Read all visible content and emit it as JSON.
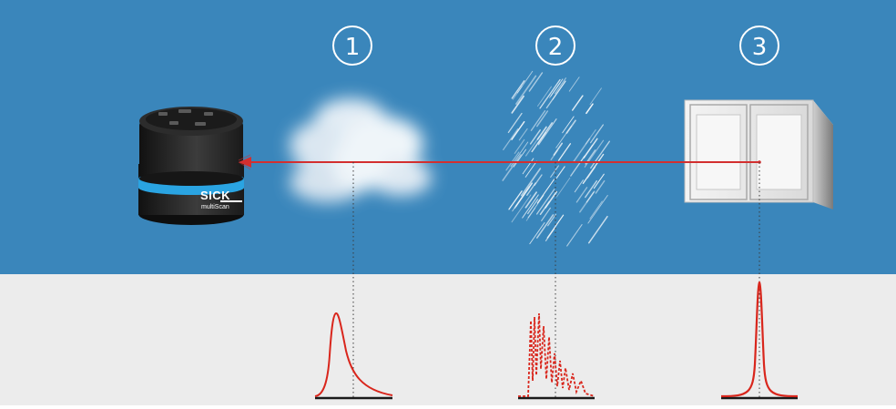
{
  "stages": [
    {
      "marker": "1",
      "obstacle": "fog",
      "echo": "broad single peak with long tail"
    },
    {
      "marker": "2",
      "obstacle": "rain",
      "echo": "multiple scattered peaks"
    },
    {
      "marker": "3",
      "obstacle": "solid object",
      "echo": "single sharp peak"
    }
  ],
  "sensor": {
    "brand": "SICK",
    "model": "multiScan"
  },
  "colors": {
    "sky": "#3a86bb",
    "ground": "#ececec",
    "beam": "#d32f2f",
    "echo_curve": "#d9261c",
    "sensor_accent": "#2aa4e2"
  }
}
